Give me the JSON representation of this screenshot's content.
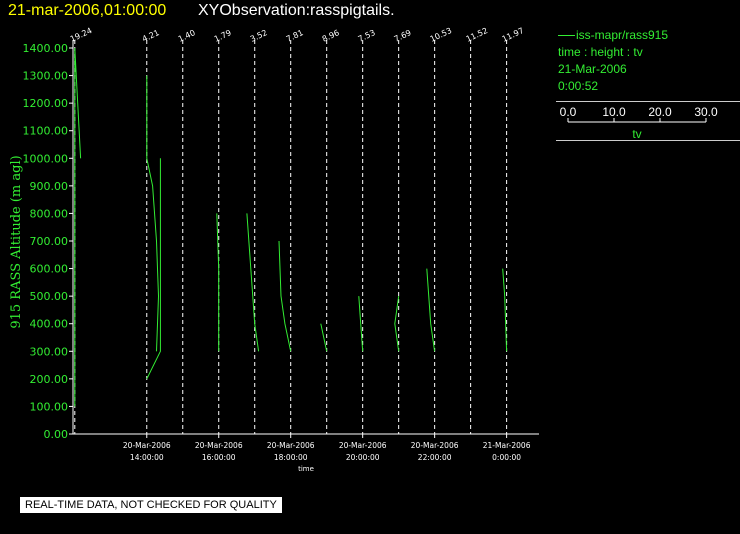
{
  "header": {
    "date_label": "21-mar-2006,01:00:00",
    "title": "XYObservation:rasspigtails."
  },
  "legend": {
    "series_label": "iss-mapr/rass915",
    "vars_label": "time : height : tv",
    "date_label": "21-Mar-2006",
    "time_label": "0:00:52",
    "scale_ticks": [
      "0.0",
      "10.0",
      "20.0",
      "30.0"
    ],
    "scale_label": "tv"
  },
  "footer": {
    "quality_notice": "REAL-TIME DATA, NOT CHECKED FOR QUALITY"
  },
  "colors": {
    "background": "#000000",
    "axis": "#ffffff",
    "data": "#33ee33",
    "date_text": "#ffff00"
  },
  "chart_data": {
    "type": "line",
    "title": "XYObservation:rasspigtails.",
    "xlabel": "time",
    "ylabel": "915 RASS Altitude (m agl)",
    "ylim": [
      0,
      1400
    ],
    "yticks": [
      "0.00",
      "100.00",
      "200.00",
      "300.00",
      "400.00",
      "500.00",
      "600.00",
      "700.00",
      "800.00",
      "900.00",
      "1000.00",
      "1100.00",
      "1200.00",
      "1300.00",
      "1400.00"
    ],
    "xlim": [
      11.95,
      24.9
    ],
    "xtick_hours": [
      14,
      16,
      18,
      20,
      22,
      24
    ],
    "xtick_labels": [
      [
        "20-Mar-2006",
        "14:00:00"
      ],
      [
        "20-Mar-2006",
        "16:00:00"
      ],
      [
        "20-Mar-2006",
        "18:00:00"
      ],
      [
        "20-Mar-2006",
        "20:00:00"
      ],
      [
        "20-Mar-2006",
        "22:00:00"
      ],
      [
        "21-Mar-2006",
        "0:00:00"
      ]
    ],
    "profiles": [
      {
        "time": 12.0,
        "label": "19.24",
        "points": [
          [
            0,
            100
          ],
          [
            0,
            1400
          ],
          [
            3,
            1000
          ]
        ]
      },
      {
        "time": 14.0,
        "label": "4.21",
        "points": [
          [
            0,
            200
          ],
          [
            7,
            300
          ],
          [
            7,
            1000
          ]
        ]
      },
      {
        "time": 14.0,
        "label": "",
        "points": [
          [
            0,
            1300
          ],
          [
            0,
            1000
          ],
          [
            3,
            900
          ],
          [
            5,
            700
          ],
          [
            6,
            500
          ],
          [
            5,
            300
          ]
        ]
      },
      {
        "time": 15.0,
        "label": "1.40",
        "points": []
      },
      {
        "time": 16.0,
        "label": "1.79",
        "points": [
          [
            -1,
            800
          ],
          [
            0,
            600
          ],
          [
            0,
            300
          ]
        ]
      },
      {
        "time": 17.0,
        "label": "3.52",
        "points": [
          [
            -4,
            800
          ],
          [
            -2,
            600
          ],
          [
            0,
            400
          ],
          [
            2,
            300
          ]
        ]
      },
      {
        "time": 18.0,
        "label": "7.81",
        "points": [
          [
            -6,
            700
          ],
          [
            -5,
            500
          ],
          [
            -3,
            400
          ],
          [
            0,
            300
          ]
        ]
      },
      {
        "time": 19.0,
        "label": "8.96",
        "points": [
          [
            -3,
            400
          ],
          [
            0,
            300
          ]
        ]
      },
      {
        "time": 20.0,
        "label": "7.53",
        "points": [
          [
            -2,
            500
          ],
          [
            -1,
            400
          ],
          [
            0,
            300
          ]
        ]
      },
      {
        "time": 21.0,
        "label": "7.69",
        "points": [
          [
            0,
            500
          ],
          [
            -2,
            400
          ],
          [
            0,
            300
          ]
        ]
      },
      {
        "time": 22.0,
        "label": "10.53",
        "points": [
          [
            -4,
            600
          ],
          [
            -2,
            400
          ],
          [
            0,
            300
          ]
        ]
      },
      {
        "time": 23.0,
        "label": "11.52",
        "points": []
      },
      {
        "time": 24.0,
        "label": "11.97",
        "points": [
          [
            -2,
            600
          ],
          [
            -1,
            500
          ],
          [
            0,
            300
          ]
        ]
      }
    ]
  }
}
